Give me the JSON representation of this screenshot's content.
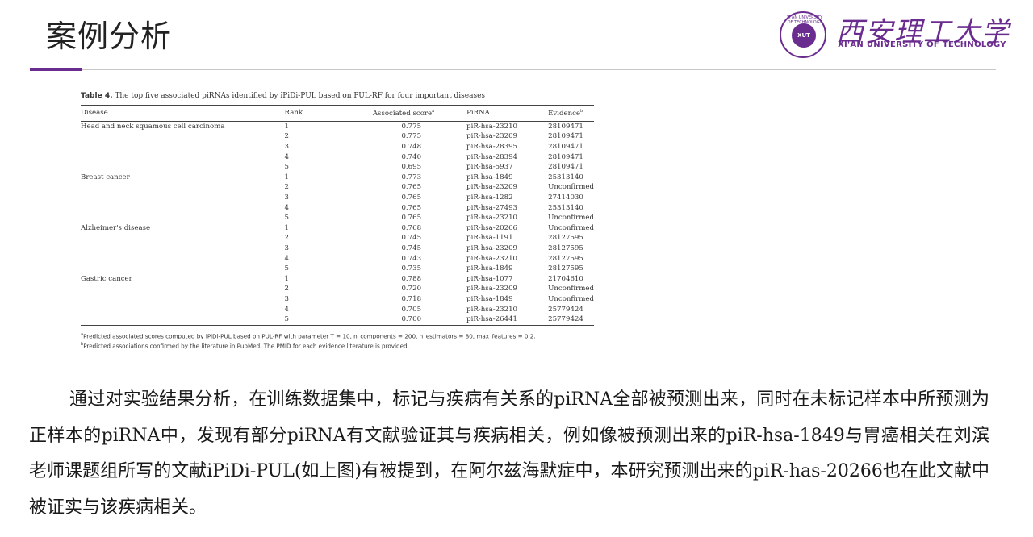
{
  "slide_title": "案例分析",
  "logo": {
    "cn_name": "西安理工大学",
    "en_name": "XI'AN UNIVERSITY OF TECHNOLOGY",
    "seal_text": "XUT",
    "seal_ring": "XI'AN UNIVERSITY OF TECHNOLOGY",
    "brand_color": "#6b2c8f"
  },
  "table": {
    "caption_label": "Table 4.",
    "caption_text": "The top five associated piRNAs identified by iPiDi-PUL based on PUL-RF for four important diseases",
    "headers": {
      "disease": "Disease",
      "rank": "Rank",
      "score": "Associated score",
      "score_sup": "a",
      "pirna": "PiRNA",
      "evidence": "Evidence",
      "evidence_sup": "b"
    },
    "rows": [
      {
        "disease": "Head and neck squamous cell carcinoma",
        "rank": "1",
        "score": "0.775",
        "pirna": "piR-hsa-23210",
        "evidence": "28109471"
      },
      {
        "disease": "",
        "rank": "2",
        "score": "0.775",
        "pirna": "piR-hsa-23209",
        "evidence": "28109471"
      },
      {
        "disease": "",
        "rank": "3",
        "score": "0.748",
        "pirna": "piR-hsa-28395",
        "evidence": "28109471"
      },
      {
        "disease": "",
        "rank": "4",
        "score": "0.740",
        "pirna": "piR-hsa-28394",
        "evidence": "28109471"
      },
      {
        "disease": "",
        "rank": "5",
        "score": "0.695",
        "pirna": "piR-hsa-5937",
        "evidence": "28109471"
      },
      {
        "disease": "Breast cancer",
        "rank": "1",
        "score": "0.773",
        "pirna": "piR-hsa-1849",
        "evidence": "25313140"
      },
      {
        "disease": "",
        "rank": "2",
        "score": "0.765",
        "pirna": "piR-hsa-23209",
        "evidence": "Unconfirmed"
      },
      {
        "disease": "",
        "rank": "3",
        "score": "0.765",
        "pirna": "piR-hsa-1282",
        "evidence": "27414030"
      },
      {
        "disease": "",
        "rank": "4",
        "score": "0.765",
        "pirna": "piR-hsa-27493",
        "evidence": "25313140"
      },
      {
        "disease": "",
        "rank": "5",
        "score": "0.765",
        "pirna": "piR-hsa-23210",
        "evidence": "Unconfirmed"
      },
      {
        "disease": "Alzheimer's disease",
        "rank": "1",
        "score": "0.768",
        "pirna": "piR-hsa-20266",
        "evidence": "Unconfirmed"
      },
      {
        "disease": "",
        "rank": "2",
        "score": "0.745",
        "pirna": "piR-hsa-1191",
        "evidence": "28127595"
      },
      {
        "disease": "",
        "rank": "3",
        "score": "0.745",
        "pirna": "piR-hsa-23209",
        "evidence": "28127595"
      },
      {
        "disease": "",
        "rank": "4",
        "score": "0.743",
        "pirna": "piR-hsa-23210",
        "evidence": "28127595"
      },
      {
        "disease": "",
        "rank": "5",
        "score": "0.735",
        "pirna": "piR-hsa-1849",
        "evidence": "28127595"
      },
      {
        "disease": "Gastric cancer",
        "rank": "1",
        "score": "0.788",
        "pirna": "piR-hsa-1077",
        "evidence": "21704610"
      },
      {
        "disease": "",
        "rank": "2",
        "score": "0.720",
        "pirna": "piR-hsa-23209",
        "evidence": "Unconfirmed"
      },
      {
        "disease": "",
        "rank": "3",
        "score": "0.718",
        "pirna": "piR-hsa-1849",
        "evidence": "Unconfirmed"
      },
      {
        "disease": "",
        "rank": "4",
        "score": "0.705",
        "pirna": "piR-hsa-23210",
        "evidence": "25779424"
      },
      {
        "disease": "",
        "rank": "5",
        "score": "0.700",
        "pirna": "piR-hsa-26441",
        "evidence": "25779424"
      }
    ],
    "footnote_a": "Predicted associated scores computed by iPiDi-PUL based on PUL-RF with parameter T = 10, n_components = 200, n_estimators = 80, max_features = 0.2.",
    "footnote_b": "Predicted associations confirmed by the literature in PubMed. The PMID for each evidence literature is provided."
  },
  "body_text": "通过对实验结果分析，在训练数据集中，标记与疾病有关系的piRNA全部被预测出来，同时在未标记样本中所预测为正样本的piRNA中，发现有部分piRNA有文献验证其与疾病相关，例如像被预测出来的piR-hsa-1849与胃癌相关在刘滨老师课题组所写的文献iPiDi-PUL(如上图)有被提到，在阿尔兹海默症中，本研究预测出来的piR-has-20266也在此文献中被证实与该疾病相关。"
}
